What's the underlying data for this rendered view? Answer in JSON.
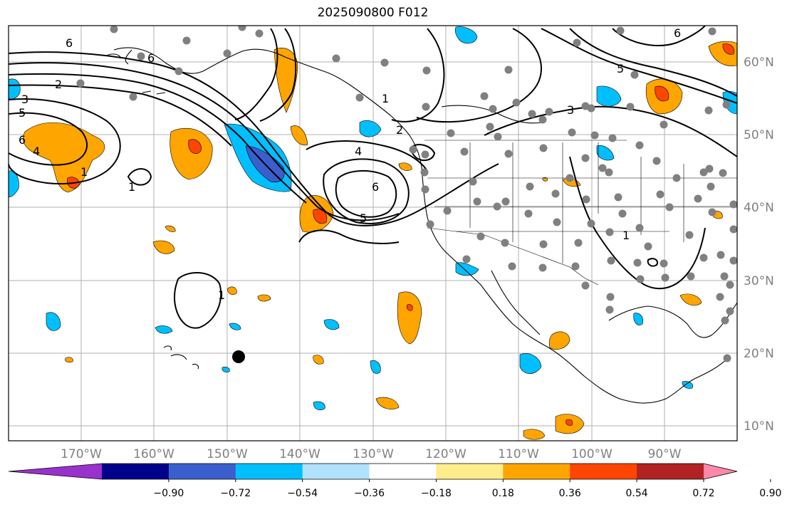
{
  "title": "2025090800 F012",
  "map": {
    "lon_labels": [
      "170°W",
      "160°W",
      "150°W",
      "140°W",
      "130°W",
      "120°W",
      "110°W",
      "100°W",
      "90°W"
    ],
    "lat_labels": [
      "60°N",
      "50°N",
      "40°N",
      "30°N",
      "20°N",
      "10°N"
    ],
    "grid": true,
    "contour_labels": [
      "6",
      "6",
      "2",
      "3",
      "5",
      "6",
      "4",
      "1",
      "1",
      "4",
      "6",
      "5",
      "2",
      "3",
      "5",
      "6",
      "1",
      "1",
      "1"
    ],
    "colors": {
      "contour": "#000000",
      "station_dot": "#808080",
      "marker": "#000000",
      "coast": "#000000",
      "grid": "#b0b0b0"
    }
  },
  "colorbar": {
    "tick_labels": [
      "−0.90",
      "−0.72",
      "−0.54",
      "−0.36",
      "−0.18",
      "0.18",
      "0.36",
      "0.54",
      "0.72",
      "0.90"
    ],
    "bins": [
      "#9932cc",
      "#00008b",
      "#3a5fcd",
      "#00bfff",
      "#b0e2ff",
      "#ffffff",
      "#ffec8b",
      "#ffa500",
      "#ff4500",
      "#b22222",
      "#ff88aa"
    ],
    "extend": "both"
  }
}
